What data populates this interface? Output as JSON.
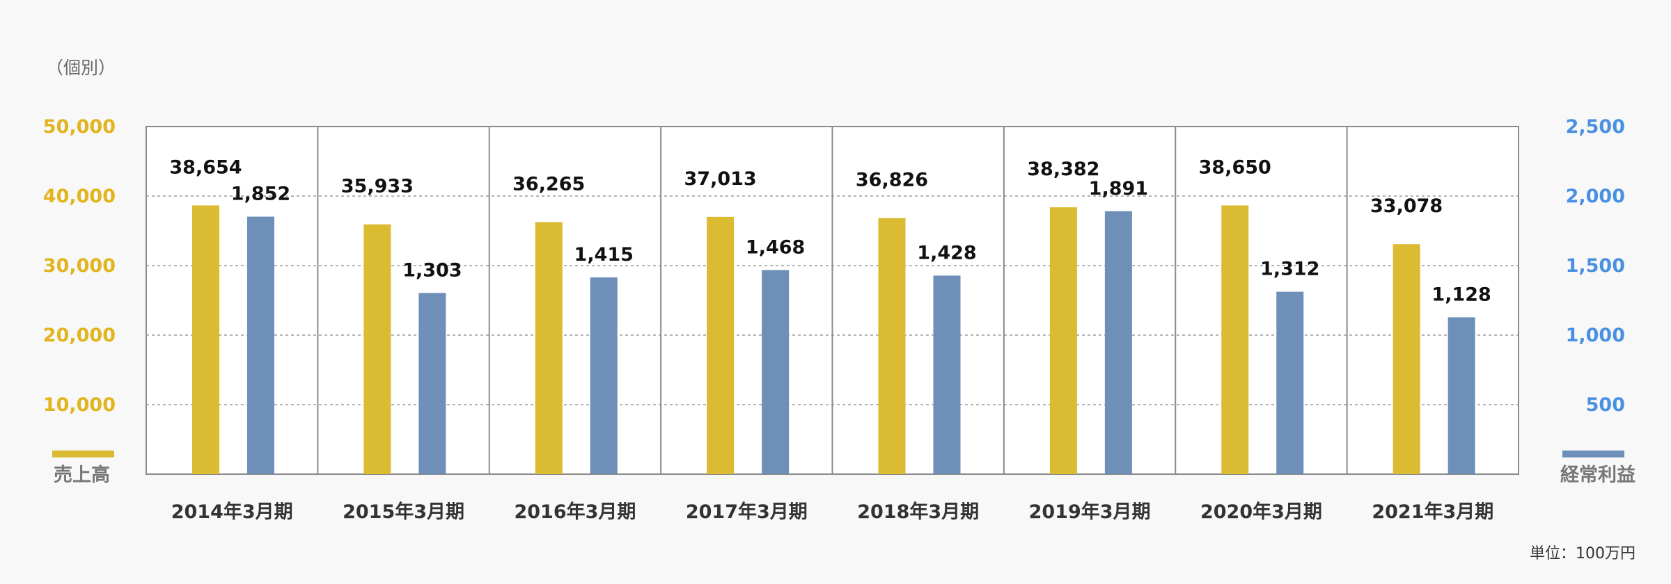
{
  "header": {
    "subtitle": "（個別）"
  },
  "legend": {
    "left_label": "売上高",
    "right_label": "経常利益"
  },
  "footer": {
    "unit_note": "単位：100万円"
  },
  "colors": {
    "sales_bar": "#dbbb31",
    "profit_bar": "#6d8fb8",
    "left_axis": "#e2b41d",
    "right_axis": "#4a90e2"
  },
  "chart_data": {
    "type": "bar",
    "categories": [
      "2014年3月期",
      "2015年3月期",
      "2016年3月期",
      "2017年3月期",
      "2018年3月期",
      "2019年3月期",
      "2020年3月期",
      "2021年3月期"
    ],
    "series": [
      {
        "name": "売上高",
        "axis": "left",
        "values": [
          38654,
          35933,
          36265,
          37013,
          36826,
          38382,
          38650,
          33078
        ],
        "labels": [
          "38,654",
          "35,933",
          "36,265",
          "37,013",
          "36,826",
          "38,382",
          "38,650",
          "33,078"
        ]
      },
      {
        "name": "経常利益",
        "axis": "right",
        "values": [
          1852,
          1303,
          1415,
          1468,
          1428,
          1891,
          1312,
          1128
        ],
        "labels": [
          "1,852",
          "1,303",
          "1,415",
          "1,468",
          "1,428",
          "1,891",
          "1,312",
          "1,128"
        ]
      }
    ],
    "left_axis": {
      "ylim": [
        0,
        50000
      ],
      "ticks": [
        10000,
        20000,
        30000,
        40000,
        50000
      ],
      "tick_labels": [
        "10,000",
        "20,000",
        "30,000",
        "40,000",
        "50,000"
      ]
    },
    "right_axis": {
      "ylim": [
        0,
        2500
      ],
      "ticks": [
        500,
        1000,
        1500,
        2000,
        2500
      ],
      "tick_labels": [
        "500",
        "1,000",
        "1,500",
        "2,000",
        "2,500"
      ]
    },
    "grid": true,
    "legend_position": "bottom-corners"
  }
}
